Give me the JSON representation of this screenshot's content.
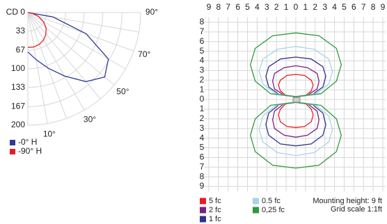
{
  "chart_data": [
    {
      "type": "polar",
      "theta": [
        0,
        10,
        20,
        30,
        40,
        50,
        60,
        70,
        80,
        90
      ],
      "rlim": [
        0,
        200
      ],
      "rticks": [
        {
          "value": 0,
          "label": "CD 0"
        },
        33,
        67,
        100,
        133,
        167,
        200
      ],
      "thetaticks": [
        {
          "value": 10,
          "label": "10°"
        },
        {
          "value": 30,
          "label": "30°"
        },
        {
          "value": 50,
          "label": "50°"
        },
        {
          "value": 70,
          "label": "70°"
        },
        {
          "value": 90,
          "label": "90°"
        }
      ],
      "grid": true,
      "series": [
        {
          "name": "-0° H",
          "color": "#2e3a96",
          "values": [
            70,
            85,
            105,
            130,
            160,
            178,
            165,
            110,
            45,
            0
          ]
        },
        {
          "name": "-90° H",
          "color": "#e31e24",
          "values": [
            62,
            62,
            60,
            56,
            50,
            42,
            32,
            20,
            8,
            0
          ]
        }
      ]
    },
    {
      "type": "contour",
      "xlim": [
        -9,
        9
      ],
      "ylim": [
        -9,
        8
      ],
      "xticks": [
        {
          "value": -9,
          "label": "9"
        },
        {
          "value": -8,
          "label": "8"
        },
        {
          "value": -7,
          "label": "7"
        },
        {
          "value": -6,
          "label": "6"
        },
        {
          "value": -5,
          "label": "5"
        },
        {
          "value": -4,
          "label": "4"
        },
        {
          "value": -3,
          "label": "3"
        },
        {
          "value": -2,
          "label": "2"
        },
        {
          "value": -1,
          "label": "1"
        },
        0,
        1,
        2,
        3,
        4,
        5,
        6,
        7,
        8,
        9
      ],
      "yticks": [
        8,
        7,
        6,
        5,
        4,
        3,
        2,
        1,
        0,
        {
          "value": -1,
          "label": "1"
        },
        {
          "value": -2,
          "label": "2"
        },
        {
          "value": -3,
          "label": "3"
        },
        {
          "value": -4,
          "label": "4"
        },
        {
          "value": -5,
          "label": "5"
        },
        {
          "value": -6,
          "label": "6"
        },
        {
          "value": -7,
          "label": "7"
        },
        {
          "value": -8,
          "label": "8"
        },
        {
          "value": -9,
          "label": "9"
        }
      ],
      "grid": true,
      "notes": [
        "Mounting height: 9 ft",
        "Grid scale  1:1ft"
      ],
      "series": [
        {
          "name": "5 fc",
          "color": "#e31e24",
          "lobes": [
            {
              "x": [
                0,
                1.0,
                1.6,
                1.8,
                1.6,
                0.9,
                0,
                -0.9,
                -1.6,
                -1.8,
                -1.6,
                -1.0
              ],
              "y": [
                0.3,
                0.4,
                0.9,
                1.5,
                2.0,
                2.5,
                2.6,
                2.5,
                2.0,
                1.5,
                0.9,
                0.4
              ]
            },
            {
              "x": [
                0,
                1.0,
                1.6,
                1.8,
                1.6,
                0.9,
                0,
                -0.9,
                -1.6,
                -1.8,
                -1.6,
                -1.0
              ],
              "y": [
                -0.3,
                -0.4,
                -1.0,
                -1.6,
                -2.3,
                -2.8,
                -2.9,
                -2.8,
                -2.3,
                -1.6,
                -1.0,
                -0.4
              ]
            }
          ]
        },
        {
          "name": "2 fc",
          "color": "#7b1f7e",
          "lobes": [
            {
              "x": [
                0,
                1.3,
                2.2,
                2.4,
                2.2,
                1.2,
                0,
                -1.2,
                -2.2,
                -2.4,
                -2.2,
                -1.3
              ],
              "y": [
                0.3,
                0.5,
                1.1,
                1.9,
                2.7,
                3.3,
                3.5,
                3.3,
                2.7,
                1.9,
                1.1,
                0.5
              ]
            },
            {
              "x": [
                0,
                1.3,
                2.2,
                2.4,
                2.2,
                1.2,
                0,
                -1.2,
                -2.2,
                -2.4,
                -2.2,
                -1.3
              ],
              "y": [
                -0.3,
                -0.5,
                -1.2,
                -2.1,
                -3.0,
                -3.7,
                -3.9,
                -3.7,
                -3.0,
                -2.1,
                -1.2,
                -0.5
              ]
            }
          ]
        },
        {
          "name": "1 fc",
          "color": "#2e3192",
          "lobes": [
            {
              "x": [
                0,
                1.7,
                2.8,
                3.1,
                2.8,
                1.6,
                0,
                -1.6,
                -2.8,
                -3.1,
                -2.8,
                -1.7
              ],
              "y": [
                0.3,
                0.5,
                1.3,
                2.4,
                3.4,
                4.2,
                4.4,
                4.2,
                3.4,
                2.4,
                1.3,
                0.5
              ]
            },
            {
              "x": [
                0,
                1.7,
                2.8,
                3.1,
                2.8,
                1.6,
                0,
                -1.6,
                -2.8,
                -3.1,
                -2.8,
                -1.7
              ],
              "y": [
                -0.3,
                -0.5,
                -1.4,
                -2.6,
                -3.7,
                -4.6,
                -4.8,
                -4.6,
                -3.7,
                -2.6,
                -1.4,
                -0.5
              ]
            }
          ]
        },
        {
          "name": "0.5 fc",
          "color": "#a9d4ea",
          "lobes": [
            {
              "x": [
                0,
                2.1,
                3.4,
                3.8,
                3.4,
                1.9,
                0,
                -1.9,
                -3.4,
                -3.8,
                -3.4,
                -2.1
              ],
              "y": [
                0.3,
                0.6,
                1.6,
                2.9,
                4.2,
                5.2,
                5.5,
                5.2,
                4.2,
                2.9,
                1.6,
                0.6
              ]
            },
            {
              "x": [
                0,
                2.1,
                3.4,
                3.8,
                3.4,
                1.9,
                0,
                -1.9,
                -3.4,
                -3.8,
                -3.4,
                -2.1
              ],
              "y": [
                -0.3,
                -0.6,
                -1.7,
                -3.1,
                -4.4,
                -5.5,
                -5.8,
                -5.5,
                -4.4,
                -3.1,
                -1.7,
                -0.6
              ]
            }
          ]
        },
        {
          "name": "0,25 fc",
          "color": "#2e9a3a",
          "lobes": [
            {
              "x": [
                0,
                2.6,
                4.2,
                4.7,
                4.2,
                2.4,
                0,
                -2.4,
                -4.2,
                -4.7,
                -4.2,
                -2.6
              ],
              "y": [
                0.3,
                0.6,
                1.9,
                3.6,
                5.3,
                6.6,
                6.9,
                6.6,
                5.3,
                3.6,
                1.9,
                0.6
              ]
            },
            {
              "x": [
                0,
                2.6,
                4.2,
                4.7,
                4.2,
                2.4,
                0,
                -2.4,
                -4.2,
                -4.7,
                -4.2,
                -2.6
              ],
              "y": [
                -0.3,
                -0.6,
                -2.0,
                -3.7,
                -5.4,
                -6.8,
                -7.1,
                -6.8,
                -5.4,
                -3.7,
                -2.0,
                -0.6
              ]
            }
          ]
        }
      ]
    }
  ]
}
